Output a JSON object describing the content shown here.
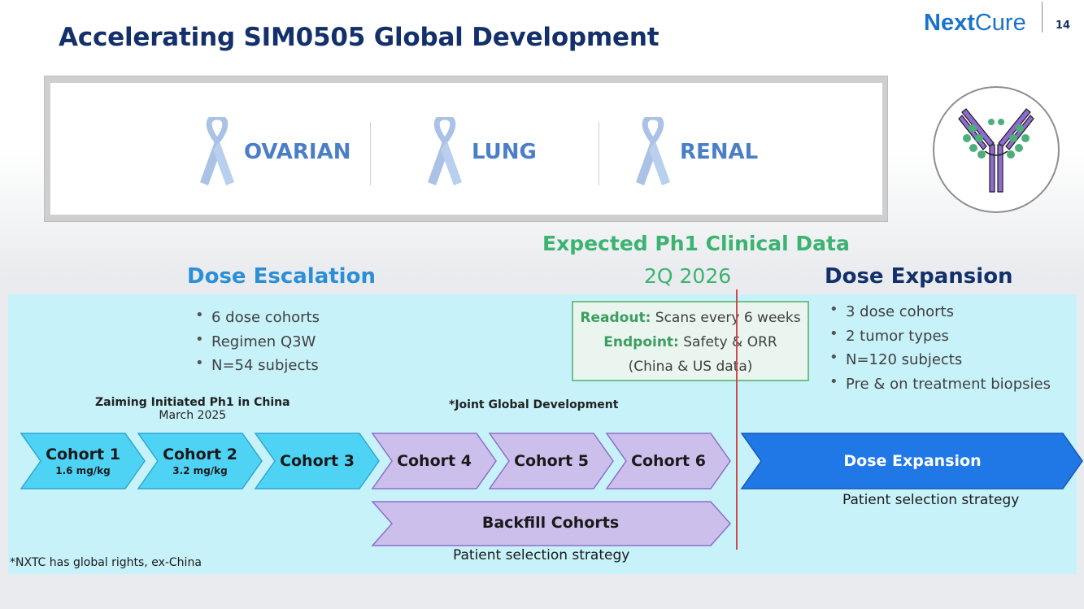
{
  "header": {
    "title": "Accelerating SIM0505 Global Development",
    "logo_prefix": "Next",
    "logo_suffix": "Cure",
    "page_number": "14"
  },
  "indications": [
    {
      "label": "OVARIAN",
      "icon": "ribbon-icon"
    },
    {
      "label": "LUNG",
      "icon": "ribbon-icon"
    },
    {
      "label": "RENAL",
      "icon": "ribbon-icon"
    }
  ],
  "expected": {
    "title": "Expected Ph1 Clinical Data",
    "date": "2Q 2026"
  },
  "escalation": {
    "title": "Dose Escalation",
    "bullets": [
      "6 dose cohorts",
      "Regimen Q3W",
      "N=54 subjects"
    ],
    "initiated_title": "Zaiming Initiated Ph1 in China",
    "initiated_date": "March 2025"
  },
  "joint_note": "*Joint Global Development",
  "readout": {
    "readout_label": "Readout:",
    "readout_text": "Scans every 6 weeks",
    "endpoint_label": "Endpoint:",
    "endpoint_text": "Safety & ORR",
    "note": "(China & US data)"
  },
  "expansion": {
    "title": "Dose Expansion",
    "bullets": [
      "3 dose cohorts",
      "2 tumor types",
      "N=120 subjects",
      "Pre & on treatment biopsies"
    ],
    "arrow_label": "Dose Expansion",
    "caption": "Patient selection strategy"
  },
  "cohorts": [
    {
      "label": "Cohort 1",
      "dose": "1.6 mg/kg"
    },
    {
      "label": "Cohort 2",
      "dose": "3.2 mg/kg"
    },
    {
      "label": "Cohort 3",
      "dose": ""
    },
    {
      "label": "Cohort 4",
      "dose": ""
    },
    {
      "label": "Cohort 5",
      "dose": ""
    },
    {
      "label": "Cohort 6",
      "dose": ""
    }
  ],
  "backfill": {
    "label": "Backfill Cohorts",
    "caption": "Patient selection strategy"
  },
  "footnote": "*NXTC has global rights, ex-China",
  "colors": {
    "title_navy": "#13306b",
    "cyan_chevron": "#4fd3f5",
    "lavender_chevron": "#cdbfec",
    "expansion_blue": "#1f78e6",
    "green": "#3cb371",
    "ribbon": "#a9c2e6"
  }
}
